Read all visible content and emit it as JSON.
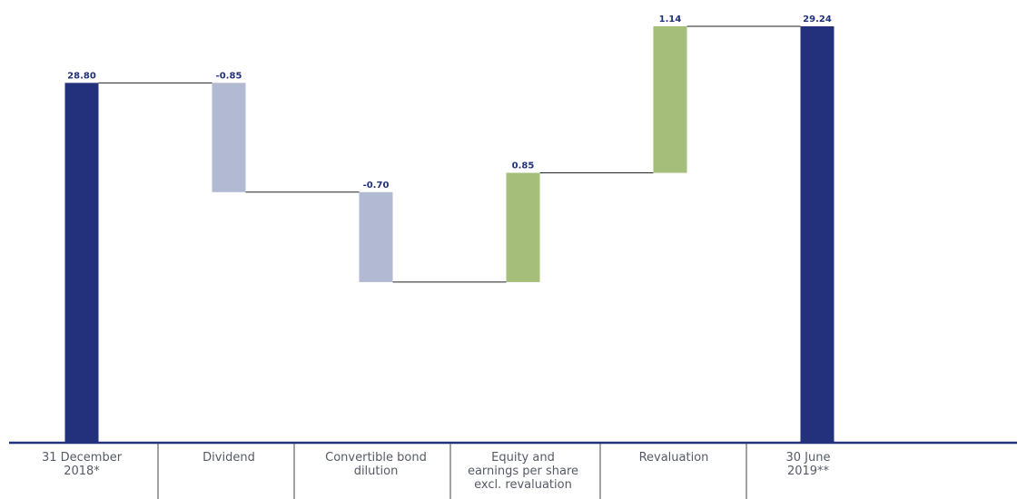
{
  "chart_data": {
    "type": "bar",
    "subtype": "waterfall",
    "categories": [
      "31 December\n2018*",
      "Dividend",
      "Convertible bond\ndilution",
      "Equity and\nearnings per share\nexcl. revaluation",
      "Revaluation",
      "30 June\n2019**"
    ],
    "values": [
      28.8,
      -0.85,
      -0.7,
      0.85,
      1.14,
      29.24
    ],
    "value_labels": [
      "28.80",
      "-0.85",
      "-0.70",
      "0.85",
      "1.14",
      "29.24"
    ],
    "bar_kinds": [
      "total",
      "decrease",
      "decrease",
      "increase",
      "increase",
      "total"
    ],
    "ylim": [
      26.0,
      29.24
    ],
    "grid": false,
    "legend": "none",
    "colors": {
      "total": "#23317c",
      "decrease": "#b2b9d3",
      "increase": "#a5bf7a",
      "axis": "#23317c",
      "connector": "#222222",
      "divider": "#444444",
      "label": "#23317c",
      "category_text": "#555a66"
    }
  }
}
